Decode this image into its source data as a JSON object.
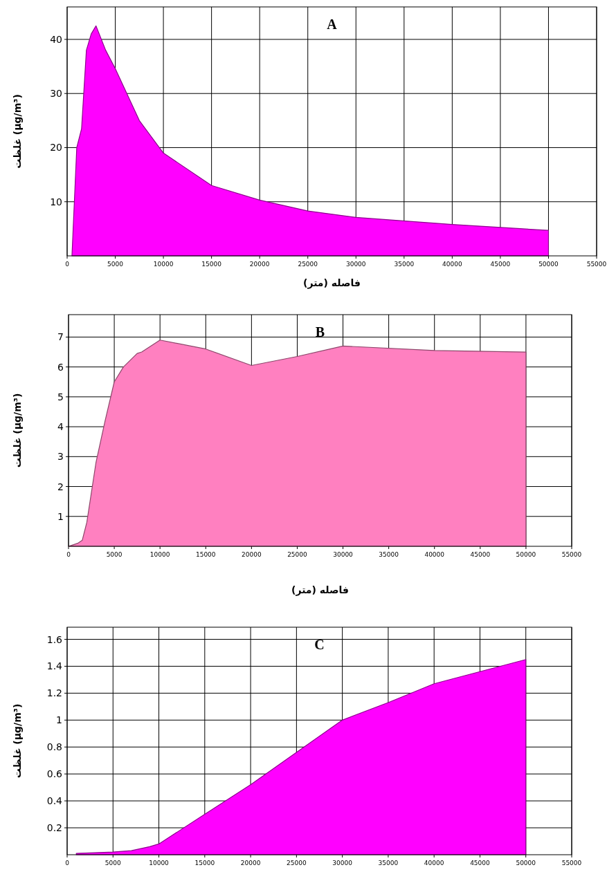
{
  "chart_data": [
    {
      "type": "area",
      "title": "A",
      "xlabel": "فاصله (متر)",
      "ylabel": "غلظت (µg/m³)",
      "grid": true,
      "xlim": [
        0,
        55000
      ],
      "ylim": [
        0,
        46
      ],
      "xticks": [
        0,
        5000,
        10000,
        15000,
        20000,
        25000,
        30000,
        35000,
        40000,
        45000,
        50000,
        55000
      ],
      "yticks": [
        10,
        20,
        30,
        40
      ],
      "x": [
        500,
        1000,
        1500,
        2000,
        2500,
        3000,
        4000,
        5000,
        7500,
        10000,
        15000,
        20000,
        25000,
        30000,
        40000,
        50000
      ],
      "series": [
        {
          "color": "#ff00ff",
          "values": [
            0,
            20,
            23.5,
            38,
            41,
            42.5,
            38,
            34.6,
            25,
            19,
            13,
            10.3,
            8.3,
            7.1,
            5.8,
            4.7
          ]
        }
      ]
    },
    {
      "type": "area",
      "title": "B",
      "xlabel": "فاصله (متر)",
      "ylabel": "غلظت (µg/m³)",
      "grid": true,
      "xlim": [
        0,
        55000
      ],
      "ylim": [
        0,
        7.75
      ],
      "xticks": [
        0,
        5000,
        10000,
        15000,
        20000,
        25000,
        30000,
        35000,
        40000,
        45000,
        50000,
        55000
      ],
      "yticks": [
        1,
        2,
        3,
        4,
        5,
        6,
        7
      ],
      "x": [
        0,
        500,
        1000,
        1500,
        2000,
        3000,
        4000,
        5000,
        6000,
        7500,
        8000,
        10000,
        15000,
        20000,
        25000,
        30000,
        40000,
        50000
      ],
      "series": [
        {
          "color": "#ff80c0",
          "values": [
            0,
            0.05,
            0.1,
            0.2,
            0.8,
            2.8,
            4.2,
            5.5,
            6.0,
            6.45,
            6.5,
            6.9,
            6.6,
            6.05,
            6.35,
            6.7,
            6.55,
            6.5
          ]
        }
      ]
    },
    {
      "type": "area",
      "title": "C",
      "ylabel": "غلظت (µg/m³)",
      "grid": true,
      "xlim": [
        0,
        55000
      ],
      "ylim": [
        0,
        1.69
      ],
      "xticks": [
        0,
        5000,
        10000,
        15000,
        20000,
        25000,
        30000,
        35000,
        40000,
        45000,
        50000,
        55000
      ],
      "yticks": [
        0.2,
        0.4,
        0.6,
        0.8,
        1,
        1.2,
        1.4,
        1.6
      ],
      "x": [
        1000,
        5000,
        7000,
        9000,
        10000,
        15000,
        20000,
        25000,
        30000,
        35000,
        40000,
        45000,
        50000
      ],
      "series": [
        {
          "color": "#ff00ff",
          "values": [
            0.01,
            0.02,
            0.03,
            0.06,
            0.08,
            0.3,
            0.52,
            0.76,
            1.0,
            1.13,
            1.27,
            1.36,
            1.45
          ]
        }
      ]
    }
  ]
}
